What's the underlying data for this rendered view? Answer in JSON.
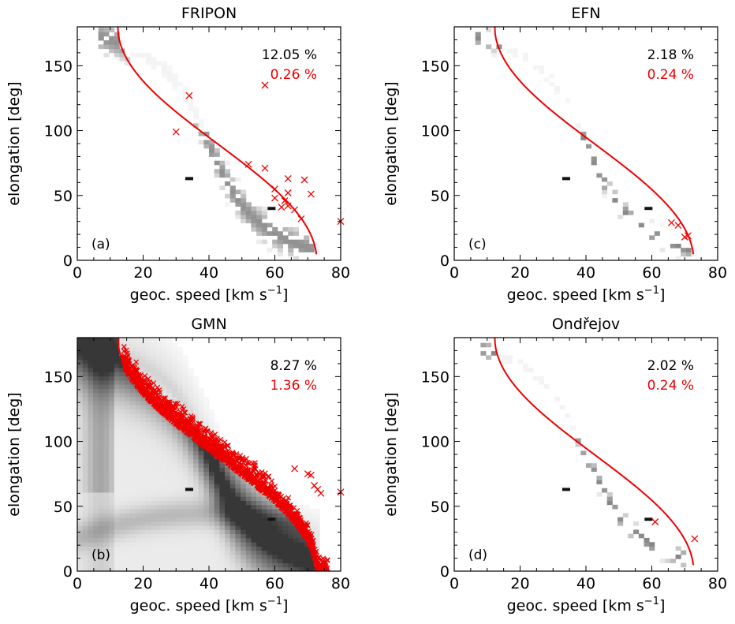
{
  "figure": {
    "xlabel": "geoc. speed [km s",
    "xlabel_sup": "−1",
    "xlabel_end": "]",
    "ylabel": "elongation [deg]"
  },
  "colors": {
    "points": "#ee0000",
    "curve": "#ee0000",
    "density": "#000000",
    "axes": "#000000"
  },
  "chart_data": [
    {
      "type": "heatmap",
      "title": "FRIPON",
      "panel_tag": "(a)",
      "pct_total": "12.05 %",
      "pct_outlier": "0.26 %",
      "xlabel": "geoc. speed [km s−1]",
      "ylabel": "elongation [deg]",
      "xlim": [
        0,
        80
      ],
      "ylim": [
        0,
        180
      ],
      "xticks": [
        "0",
        "20",
        "40",
        "60",
        "80"
      ],
      "yticks": [
        "0",
        "50",
        "100",
        "150"
      ],
      "density": "moderate",
      "outliers": [
        [
          34,
          127
        ],
        [
          57,
          135
        ],
        [
          30,
          99
        ],
        [
          52,
          74
        ],
        [
          57,
          71
        ],
        [
          64,
          63
        ],
        [
          69,
          62
        ],
        [
          71,
          51
        ],
        [
          64,
          52
        ],
        [
          60,
          55
        ],
        [
          63,
          46
        ],
        [
          64,
          42
        ],
        [
          66,
          39
        ],
        [
          62,
          41
        ],
        [
          68,
          32
        ],
        [
          60,
          48
        ],
        [
          80,
          30
        ]
      ]
    },
    {
      "type": "heatmap",
      "title": "EFN",
      "panel_tag": "(c)",
      "pct_total": "2.18 %",
      "pct_outlier": "0.24 %",
      "xlabel": "geoc. speed [km s−1]",
      "ylabel": "elongation [deg]",
      "xlim": [
        0,
        80
      ],
      "ylim": [
        0,
        180
      ],
      "xticks": [
        "0",
        "20",
        "40",
        "60",
        "80"
      ],
      "yticks": [
        "0",
        "50",
        "100",
        "150"
      ],
      "density": "sparse",
      "outliers": [
        [
          66,
          29
        ],
        [
          68,
          27
        ],
        [
          71,
          19
        ],
        [
          70,
          18
        ]
      ]
    },
    {
      "type": "heatmap",
      "title": "GMN",
      "panel_tag": "(b)",
      "pct_total": "8.27 %",
      "pct_outlier": "1.36 %",
      "xlabel": "geoc. speed [km s−1]",
      "ylabel": "elongation [deg]",
      "xlim": [
        0,
        80
      ],
      "ylim": [
        0,
        180
      ],
      "xticks": [
        "0",
        "20",
        "40",
        "60",
        "80"
      ],
      "yticks": [
        "0",
        "50",
        "100",
        "150"
      ],
      "density": "dense",
      "outliers": [
        [
          17,
          153
        ],
        [
          18,
          154
        ],
        [
          66,
          79
        ],
        [
          70,
          75
        ],
        [
          71,
          74
        ],
        [
          72,
          66
        ],
        [
          80,
          61
        ],
        [
          73,
          63
        ],
        [
          74,
          60
        ]
      ]
    },
    {
      "type": "heatmap",
      "title": "Ondřejov",
      "panel_tag": "(d)",
      "pct_total": "2.02 %",
      "pct_outlier": "0.24 %",
      "xlabel": "geoc. speed [km s−1]",
      "ylabel": "elongation [deg]",
      "xlim": [
        0,
        80
      ],
      "ylim": [
        0,
        180
      ],
      "xticks": [
        "0",
        "20",
        "40",
        "60",
        "80"
      ],
      "yticks": [
        "0",
        "50",
        "100",
        "150"
      ],
      "density": "sparse",
      "outliers": [
        [
          61,
          38
        ],
        [
          73,
          25
        ]
      ]
    }
  ]
}
